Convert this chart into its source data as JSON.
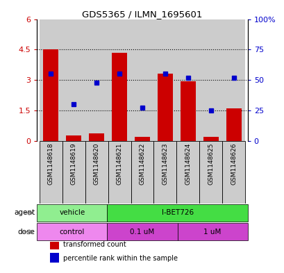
{
  "title": "GDS5365 / ILMN_1695601",
  "samples": [
    "GSM1148618",
    "GSM1148619",
    "GSM1148620",
    "GSM1148621",
    "GSM1148622",
    "GSM1148623",
    "GSM1148624",
    "GSM1148625",
    "GSM1148626"
  ],
  "bar_values": [
    4.5,
    0.25,
    0.35,
    4.35,
    0.2,
    3.3,
    2.95,
    0.18,
    1.6
  ],
  "dot_values": [
    55,
    30,
    48,
    55,
    27,
    55,
    52,
    25,
    52
  ],
  "bar_color": "#cc0000",
  "dot_color": "#0000cc",
  "ylim_left": [
    0,
    6
  ],
  "ylim_right": [
    0,
    100
  ],
  "yticks_left": [
    0,
    1.5,
    3.0,
    4.5,
    6.0
  ],
  "yticks_right": [
    0,
    25,
    50,
    75,
    100
  ],
  "ytick_labels_left": [
    "0",
    "1.5",
    "3",
    "4.5",
    "6"
  ],
  "ytick_labels_right": [
    "0",
    "25",
    "50",
    "75",
    "100%"
  ],
  "hlines": [
    1.5,
    3.0,
    4.5
  ],
  "agent_groups": [
    {
      "label": "vehicle",
      "start": 0,
      "end": 3,
      "color": "#90ee90"
    },
    {
      "label": "I-BET726",
      "start": 3,
      "end": 9,
      "color": "#44dd44"
    }
  ],
  "dose_groups": [
    {
      "label": "control",
      "start": 0,
      "end": 3,
      "color": "#ee88ee"
    },
    {
      "label": "0.1 uM",
      "start": 3,
      "end": 6,
      "color": "#cc44cc"
    },
    {
      "label": "1 uM",
      "start": 6,
      "end": 9,
      "color": "#cc44cc"
    }
  ],
  "legend_items": [
    {
      "label": "transformed count",
      "color": "#cc0000"
    },
    {
      "label": "percentile rank within the sample",
      "color": "#0000cc"
    }
  ],
  "col_bg": "#cccccc",
  "plot_bg": "#ffffff",
  "height_ratios": [
    3.5,
    1.8,
    0.55,
    0.55,
    0.75
  ],
  "figsize": [
    4.1,
    3.93
  ],
  "dpi": 100
}
